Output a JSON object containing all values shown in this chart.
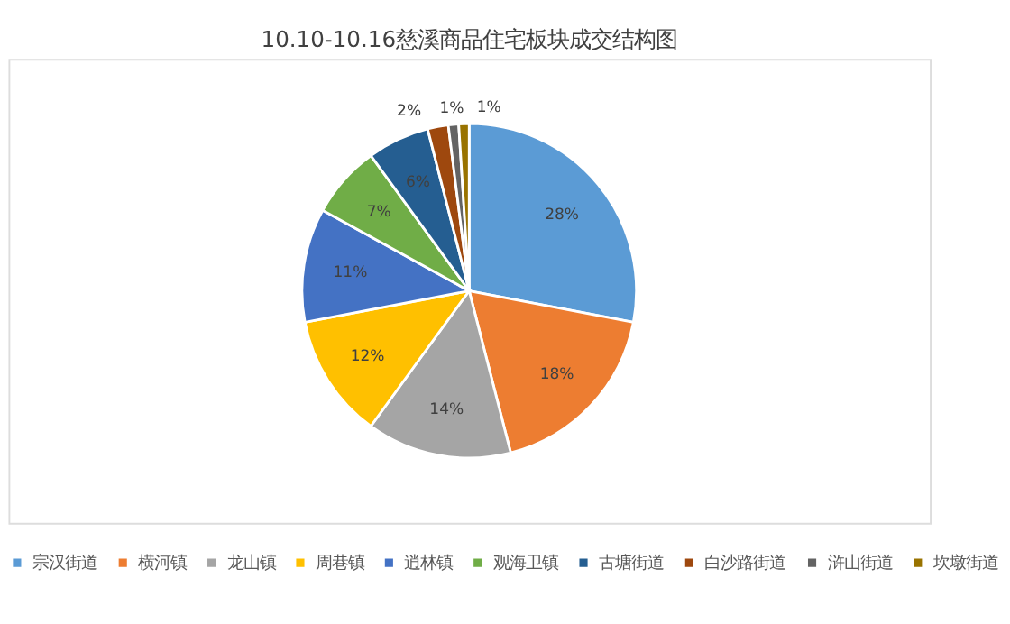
{
  "chart_data": {
    "type": "pie",
    "title": "10.10-10.16慈溪商品住宅板块成交结构图",
    "categories": [
      "宗汉街道",
      "横河镇",
      "龙山镇",
      "周巷镇",
      "逍林镇",
      "观海卫镇",
      "古塘街道",
      "白沙路街道",
      "浒山街道",
      "坎墩街道"
    ],
    "values": [
      28,
      18,
      14,
      12,
      11,
      7,
      6,
      2,
      1,
      1
    ],
    "value_labels": [
      "28%",
      "18%",
      "14%",
      "12%",
      "11%",
      "7%",
      "6%",
      "2%",
      "1%",
      "1%"
    ],
    "colors": [
      "#5b9bd5",
      "#ed7d31",
      "#a5a5a5",
      "#ffc000",
      "#4472c4",
      "#70ad47",
      "#255e91",
      "#9e480e",
      "#636363",
      "#997300"
    ],
    "legend": "bottom"
  }
}
